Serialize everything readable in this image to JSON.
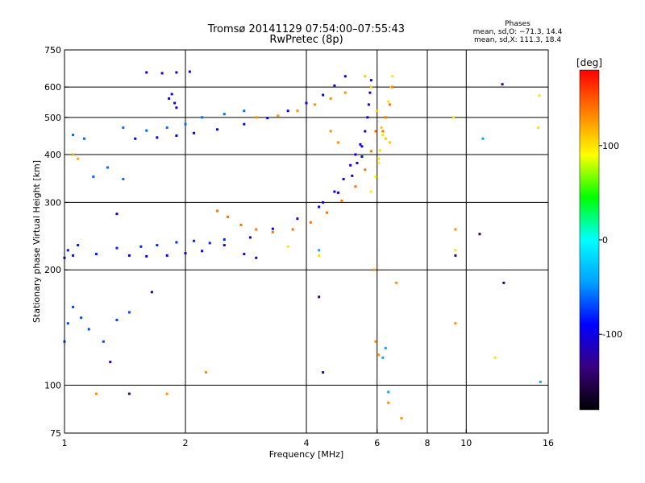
{
  "chart_data": {
    "type": "scatter",
    "title": "Tromsø 20141129 07:54:00–07:55:43",
    "subtitle": "RwPretec (8p)",
    "xlabel": "Frequency [MHz]",
    "ylabel": "Stationary phase Virtual Height [km]",
    "x_scale": "log",
    "y_scale": "log",
    "xlim": [
      1,
      16
    ],
    "ylim": [
      75,
      750
    ],
    "x_ticks": [
      1,
      2,
      4,
      6,
      8,
      10,
      16
    ],
    "x_tick_labels": [
      "1",
      "2",
      "4",
      "6",
      "8",
      "10",
      "16"
    ],
    "y_ticks": [
      75,
      100,
      200,
      300,
      400,
      500,
      600,
      750
    ],
    "y_tick_labels": [
      "75",
      "100",
      "200",
      "300",
      "400",
      "500",
      "600",
      "750"
    ],
    "grid_x": [
      2,
      4,
      6,
      8,
      10
    ],
    "grid_y": [
      100,
      200,
      300,
      400,
      500,
      600
    ],
    "grid": true,
    "stats_title": "Phases",
    "stats_lines": [
      "mean, sd,O: −71.3, 14.4",
      "mean, sd,X: 111.3, 18.4"
    ],
    "colorbar": {
      "unit": "[deg]",
      "min": -180,
      "max": 180,
      "ticks": [
        100,
        0,
        -100
      ],
      "tick_labels": [
        "100",
        "0",
        "-100"
      ],
      "stops": [
        "#000000",
        "#3a0080",
        "#0000ff",
        "#00a0ff",
        "#00ffff",
        "#00ff00",
        "#ffff00",
        "#ff8000",
        "#ff0000"
      ]
    },
    "series": [
      {
        "phase": -95,
        "x": [
          1.45,
          1.6,
          1.8,
          2.0,
          2.2,
          2.5,
          2.9,
          3.3,
          3.8,
          4.3,
          4.8,
          5.2,
          5.5
        ],
        "y": [
          218,
          217,
          218,
          221,
          224,
          232,
          243,
          256,
          272,
          292,
          318,
          352,
          395
        ]
      },
      {
        "phase": -110,
        "x": [
          5.35,
          5.5,
          5.6,
          5.68,
          5.72,
          5.76,
          5.8
        ],
        "y": [
          380,
          420,
          460,
          500,
          540,
          580,
          625
        ]
      },
      {
        "phase": -100,
        "x": [
          4.4,
          4.7,
          4.95,
          5.15,
          5.3,
          5.45
        ],
        "y": [
          300,
          320,
          345,
          375,
          400,
          425
        ]
      },
      {
        "phase": -85,
        "x": [
          1.0,
          1.02,
          1.05,
          1.08
        ],
        "y": [
          215,
          225,
          218,
          232
        ]
      },
      {
        "phase": -80,
        "x": [
          1.2,
          1.35,
          1.55,
          1.7,
          1.9,
          2.1,
          2.3,
          2.5
        ],
        "y": [
          220,
          228,
          230,
          232,
          236,
          238,
          235,
          240
        ]
      },
      {
        "phase": -90,
        "x": [
          1.5,
          1.7,
          1.9,
          2.1,
          2.4,
          2.8,
          3.2,
          3.6,
          4.0,
          4.4,
          4.7,
          5.0
        ],
        "y": [
          440,
          443,
          448,
          455,
          465,
          480,
          498,
          520,
          545,
          572,
          605,
          640
        ]
      },
      {
        "phase": -60,
        "x": [
          1.4,
          1.6,
          1.8,
          2.0,
          2.2,
          2.5,
          2.8
        ],
        "y": [
          470,
          462,
          470,
          480,
          500,
          510,
          520
        ]
      },
      {
        "phase": -105,
        "x": [
          1.6,
          1.75,
          1.9,
          2.05
        ],
        "y": [
          655,
          652,
          655,
          658
        ]
      },
      {
        "phase": -100,
        "x": [
          1.82,
          1.85,
          1.88,
          1.9
        ],
        "y": [
          560,
          575,
          545,
          530
        ]
      },
      {
        "phase": 140,
        "x": [
          2.4,
          2.55,
          2.75,
          3.0,
          3.3,
          3.7,
          4.1,
          4.5,
          4.9,
          5.3,
          5.6,
          5.8,
          5.95
        ],
        "y": [
          285,
          275,
          262,
          255,
          251,
          255,
          266,
          282,
          303,
          330,
          365,
          408,
          460
        ]
      },
      {
        "phase": 130,
        "x": [
          3.0,
          3.4,
          3.8,
          4.2,
          4.6,
          5.0
        ],
        "y": [
          500,
          505,
          520,
          540,
          560,
          580
        ]
      },
      {
        "phase": 110,
        "x": [
          5.6,
          5.8,
          6.0,
          6.15,
          6.3,
          6.45
        ],
        "y": [
          640,
          600,
          520,
          470,
          440,
          430
        ]
      },
      {
        "phase": 100,
        "x": [
          6.05,
          6.1,
          6.2,
          6.3,
          6.4,
          6.5,
          6.55
        ],
        "y": [
          390,
          410,
          450,
          500,
          550,
          600,
          640
        ]
      },
      {
        "phase": 95,
        "x": [
          5.8,
          5.95,
          6.05
        ],
        "y": [
          320,
          350,
          380
        ]
      },
      {
        "phase": 140,
        "x": [
          6.2,
          6.3,
          6.45,
          6.55
        ],
        "y": [
          460,
          500,
          540,
          600
        ]
      },
      {
        "phase": -70,
        "x": [
          1.0,
          1.02,
          1.05,
          1.1,
          1.15,
          1.25,
          1.35,
          1.45
        ],
        "y": [
          130,
          145,
          160,
          150,
          140,
          130,
          148,
          155
        ]
      },
      {
        "phase": -60,
        "x": [
          1.05,
          1.12,
          1.18,
          1.28,
          1.4
        ],
        "y": [
          450,
          440,
          350,
          370,
          345
        ]
      },
      {
        "phase": 120,
        "x": [
          1.05,
          1.08
        ],
        "y": [
          400,
          390
        ]
      },
      {
        "phase": -120,
        "x": [
          1.3,
          1.65,
          1.35,
          4.4,
          2.8,
          3.0
        ],
        "y": [
          115,
          175,
          280,
          108,
          220,
          215
        ]
      },
      {
        "phase": 130,
        "x": [
          1.2,
          1.8,
          2.25,
          4.6,
          4.8,
          5.9,
          5.95,
          6.05,
          6.7,
          6.4,
          9.4,
          9.4,
          6.9
        ],
        "y": [
          95,
          95,
          108,
          460,
          430,
          200,
          130,
          120,
          185,
          90,
          255,
          145,
          82
        ]
      },
      {
        "phase": 100,
        "x": [
          3.6,
          4.3,
          9.4,
          9.3,
          11.8,
          15.2,
          15.1
        ],
        "y": [
          230,
          218,
          225,
          500,
          118,
          570,
          470
        ]
      },
      {
        "phase": -40,
        "x": [
          4.3,
          6.2,
          6.3,
          6.4,
          11.0,
          15.3
        ],
        "y": [
          225,
          118,
          125,
          96,
          440,
          102
        ]
      },
      {
        "phase": -140,
        "x": [
          9.4,
          10.8,
          12.4,
          12.3,
          4.3,
          1.45
        ],
        "y": [
          218,
          248,
          185,
          610,
          170,
          95
        ]
      }
    ]
  }
}
